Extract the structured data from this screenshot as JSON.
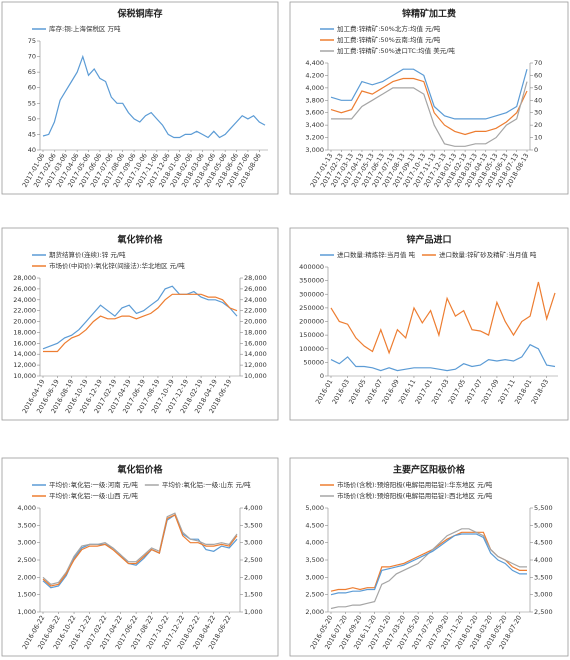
{
  "chart_data": [
    {
      "type": "line",
      "title": "保税铜库存",
      "categories": [
        "2017-01-06",
        null,
        "2017-02-06",
        null,
        "2017-03-06",
        null,
        "2017-04-06",
        null,
        "2017-05-06",
        null,
        "2017-06-06",
        null,
        "2017-07-06",
        null,
        "2017-08-06",
        null,
        "2017-09-06",
        null,
        "2017-10-06",
        null,
        "2017-11-06",
        null,
        "2017-12-06",
        null,
        "2018-01-06",
        null,
        "2018-02-06",
        null,
        "2018-03-06",
        null,
        "2018-04-06",
        null,
        "2018-05-06",
        null,
        "2018-06-06",
        null,
        "2018-07-06",
        null,
        "2018-08-06",
        null
      ],
      "series": [
        {
          "name": "库存:铜:上海保税区 万吨",
          "color": "#5b9bd5",
          "values": [
            44.5,
            45,
            49,
            56,
            59,
            62,
            65,
            70,
            64,
            66,
            63,
            62,
            57,
            55,
            55,
            52,
            50,
            49,
            51,
            52,
            50,
            48,
            45,
            44,
            44,
            45,
            45,
            46,
            45,
            44,
            46,
            44,
            45,
            47,
            49,
            51,
            50,
            51,
            49,
            48
          ]
        }
      ],
      "ylim": [
        40,
        75
      ],
      "yticks": [
        40,
        45,
        50,
        55,
        60,
        65,
        70,
        75
      ]
    },
    {
      "type": "line",
      "title": "锌精矿加工费",
      "categories": [
        "2017-01-13",
        "2017-02-13",
        "2017-03-13",
        "2017-04-13",
        "2017-05-13",
        "2017-06-13",
        "2017-07-13",
        "2017-08-13",
        "2017-09-13",
        "2017-10-13",
        "2017-11-13",
        "2017-12-13",
        "2018-01-13",
        "2018-02-13",
        "2018-03-13",
        "2018-04-13",
        "2018-05-13",
        "2018-06-13",
        "2018-07-13",
        "2018-08-13"
      ],
      "series": [
        {
          "name": "加工费:锌精矿:50%北方:均值 元/吨",
          "color": "#5b9bd5",
          "values": [
            3850,
            3800,
            3800,
            4100,
            4050,
            4100,
            4200,
            4300,
            4300,
            4200,
            3700,
            3550,
            3500,
            3500,
            3500,
            3500,
            3550,
            3600,
            3700,
            4300
          ]
        },
        {
          "name": "加工费:锌精矿:50%云南:均值 元/吨",
          "color": "#ed7d31",
          "values": [
            3650,
            3600,
            3650,
            3950,
            3900,
            4000,
            4100,
            4150,
            4150,
            4100,
            3600,
            3400,
            3300,
            3250,
            3300,
            3300,
            3350,
            3450,
            3600,
            3950
          ]
        },
        {
          "name": "加工费:锌精矿:50%进口TC:均值 美元/吨",
          "color": "#a5a5a5",
          "axis": "y2",
          "values": [
            25,
            25,
            25,
            35,
            40,
            45,
            50,
            50,
            50,
            45,
            20,
            5,
            3,
            3,
            5,
            5,
            10,
            20,
            25,
            55
          ]
        }
      ],
      "ylim": [
        3000,
        4400
      ],
      "yticks": [
        {
          "value": 3000,
          "label": "3,000"
        },
        {
          "value": 3200,
          "label": "3,200"
        },
        {
          "value": 3400,
          "label": "3,400"
        },
        {
          "value": 3600,
          "label": "3,600"
        },
        {
          "value": 3800,
          "label": "3,800"
        },
        {
          "value": 4000,
          "label": "4,000"
        },
        {
          "value": 4200,
          "label": "4,200"
        },
        {
          "value": 4400,
          "label": "4,400"
        }
      ],
      "y2lim": [
        0,
        70
      ],
      "y2ticks": [
        0,
        10,
        20,
        30,
        40,
        50,
        60,
        70
      ]
    },
    {
      "type": "line",
      "title": "氧化锌价格",
      "categories": [
        "2016-04-19",
        null,
        "2016-06-19",
        null,
        "2016-08-19",
        null,
        "2016-10-19",
        null,
        "2016-12-19",
        null,
        "2017-02-19",
        null,
        "2017-04-19",
        null,
        "2017-06-19",
        null,
        "2017-08-19",
        null,
        "2017-10-19",
        null,
        "2017-12-19",
        null,
        "2018-02-19",
        null,
        "2018-04-19",
        null,
        "2018-06-19",
        null
      ],
      "series": [
        {
          "name": "期货结算价(连续):锌 元/吨",
          "color": "#5b9bd5",
          "values": [
            15000,
            15500,
            16000,
            17000,
            17500,
            18500,
            20000,
            21500,
            23000,
            22000,
            21000,
            22500,
            23000,
            21500,
            22000,
            23000,
            24000,
            26000,
            26500,
            25000,
            25000,
            25500,
            24500,
            24000,
            24000,
            23500,
            22500,
            21000
          ]
        },
        {
          "name": "市场价(中间价):氧化锌(间接法):华北地区 元/吨",
          "color": "#ed7d31",
          "axis": "y2",
          "values": [
            14500,
            14500,
            14500,
            16000,
            17000,
            17500,
            18500,
            20000,
            21000,
            20500,
            20500,
            21000,
            21000,
            20500,
            21000,
            21500,
            22500,
            24000,
            25000,
            25000,
            25000,
            25000,
            25000,
            24500,
            24500,
            24000,
            22500,
            22000
          ]
        }
      ],
      "ylim": [
        10000,
        28000
      ],
      "yticks": [
        {
          "value": 10000,
          "label": "10,000"
        },
        {
          "value": 12000,
          "label": "12,000"
        },
        {
          "value": 14000,
          "label": "14,000"
        },
        {
          "value": 16000,
          "label": "16,000"
        },
        {
          "value": 18000,
          "label": "18,000"
        },
        {
          "value": 20000,
          "label": "20,000"
        },
        {
          "value": 22000,
          "label": "22,000"
        },
        {
          "value": 24000,
          "label": "24,000"
        },
        {
          "value": 26000,
          "label": "26,000"
        },
        {
          "value": 28000,
          "label": "28,000"
        }
      ],
      "y2lim": [
        10000,
        28000
      ],
      "y2ticks": [
        {
          "value": 10000,
          "label": "10,000"
        },
        {
          "value": 12000,
          "label": "12,000"
        },
        {
          "value": 14000,
          "label": "14,000"
        },
        {
          "value": 16000,
          "label": "16,000"
        },
        {
          "value": 18000,
          "label": "18,000"
        },
        {
          "value": 20000,
          "label": "20,000"
        },
        {
          "value": 22000,
          "label": "22,000"
        },
        {
          "value": 24000,
          "label": "24,000"
        },
        {
          "value": 26000,
          "label": "26,000"
        },
        {
          "value": 28000,
          "label": "28,000"
        }
      ]
    },
    {
      "type": "line",
      "title": "锌产品进口",
      "categories": [
        "2016-01",
        null,
        "2016-03",
        null,
        "2016-05",
        null,
        "2016-07",
        null,
        "2016-09",
        null,
        "2016-11",
        null,
        "2017-01",
        null,
        "2017-03",
        null,
        "2017-05",
        null,
        "2017-07",
        null,
        "2017-09",
        null,
        "2017-11",
        null,
        "2018-01",
        null,
        "2018-03",
        null
      ],
      "series": [
        {
          "name": "进口数量:精炼锌:当月值 吨",
          "color": "#5b9bd5",
          "values": [
            60000,
            45000,
            70000,
            35000,
            35000,
            30000,
            20000,
            30000,
            20000,
            25000,
            30000,
            30000,
            30000,
            25000,
            20000,
            25000,
            45000,
            35000,
            40000,
            60000,
            55000,
            60000,
            55000,
            70000,
            115000,
            100000,
            40000,
            35000
          ]
        },
        {
          "name": "进口数量:锌矿砂及精矿:当月值 吨",
          "color": "#ed7d31",
          "values": [
            250000,
            200000,
            190000,
            140000,
            110000,
            90000,
            170000,
            85000,
            170000,
            140000,
            250000,
            195000,
            240000,
            150000,
            285000,
            220000,
            240000,
            170000,
            165000,
            150000,
            270000,
            200000,
            150000,
            200000,
            220000,
            345000,
            210000,
            305000
          ]
        }
      ],
      "ylim": [
        0,
        400000
      ],
      "yticks": [
        0,
        50000,
        100000,
        150000,
        200000,
        250000,
        300000,
        350000,
        400000
      ]
    },
    {
      "type": "line",
      "title": "氧化铝价格",
      "categories": [
        "2016-06-22",
        null,
        "2016-08-22",
        null,
        "2016-10-22",
        null,
        "2016-12-22",
        null,
        "2017-02-22",
        null,
        "2017-04-22",
        null,
        "2017-06-22",
        null,
        "2017-08-22",
        null,
        "2017-10-22",
        null,
        "2017-12-22",
        null,
        "2018-02-22",
        null,
        "2018-04-22",
        null,
        "2018-06-22",
        null
      ],
      "series": [
        {
          "name": "平均价:氧化铝:一级:河南 元/吨",
          "color": "#5b9bd5",
          "values": [
            1900,
            1700,
            1750,
            2050,
            2550,
            2850,
            2950,
            2950,
            2950,
            2850,
            2650,
            2400,
            2350,
            2550,
            2800,
            2700,
            3650,
            3800,
            3250,
            3100,
            3100,
            2800,
            2750,
            2900,
            2850,
            3100
          ]
        },
        {
          "name": "平均价:氧化铝:一级:山东 元/吨",
          "color": "#a5a5a5",
          "values": [
            2000,
            1800,
            1850,
            2150,
            2600,
            2900,
            2950,
            2950,
            3000,
            2850,
            2650,
            2450,
            2450,
            2650,
            2850,
            2750,
            3750,
            3850,
            3300,
            3100,
            3050,
            2950,
            2950,
            3000,
            2950,
            3250
          ]
        },
        {
          "name": "平均价:氧化铝:一级:山西 元/吨",
          "color": "#ed7d31",
          "values": [
            1950,
            1750,
            1800,
            2100,
            2500,
            2800,
            2900,
            2900,
            2950,
            2800,
            2600,
            2400,
            2400,
            2600,
            2800,
            2700,
            3700,
            3800,
            3200,
            3000,
            3000,
            2900,
            2900,
            2950,
            2900,
            3200
          ]
        }
      ],
      "ylim": [
        1000,
        4000
      ],
      "yticks": [
        {
          "value": 1000,
          "label": "1,000"
        },
        {
          "value": 1500,
          "label": "1,500"
        },
        {
          "value": 2000,
          "label": "2,000"
        },
        {
          "value": 2500,
          "label": "2,500"
        },
        {
          "value": 3000,
          "label": "3,000"
        },
        {
          "value": 3500,
          "label": "3,500"
        },
        {
          "value": 4000,
          "label": "4,000"
        }
      ],
      "y2lim": [
        1000,
        4000
      ],
      "y2ticks": [
        {
          "value": 1000,
          "label": "1,000"
        },
        {
          "value": 1500,
          "label": "1,500"
        },
        {
          "value": 2000,
          "label": "2,000"
        },
        {
          "value": 2500,
          "label": "2,500"
        },
        {
          "value": 3000,
          "label": "3,000"
        },
        {
          "value": 3500,
          "label": "3,500"
        },
        {
          "value": 4000,
          "label": "4,000"
        }
      ]
    },
    {
      "type": "line",
      "title": "主要产区阳极价格",
      "categories": [
        "2016-05-20",
        null,
        "2016-07-20",
        null,
        "2016-09-20",
        null,
        "2016-11-20",
        null,
        "2017-01-20",
        null,
        "2017-03-20",
        null,
        "2017-05-20",
        null,
        "2017-07-20",
        null,
        "2017-09-20",
        null,
        "2017-11-20",
        null,
        "2018-01-20",
        null,
        "2018-03-20",
        null,
        "2018-05-20",
        null,
        "2018-07-20",
        null
      ],
      "series": [
        {
          "name": "市场价(含税):预焙阳极(电解铝用铝锭):华东地区 元/吨",
          "color": "#ed7d31",
          "values": [
            2600,
            2650,
            2650,
            2700,
            2650,
            2700,
            2700,
            3300,
            3300,
            3350,
            3400,
            3500,
            3600,
            3700,
            3800,
            3950,
            4100,
            4200,
            4300,
            4300,
            4300,
            4300,
            3800,
            3600,
            3500,
            3300,
            3200,
            3200
          ]
        },
        {
          "name": "市场价(含税):预焙阳极(电解铝用铝锭):西北地区 元/吨",
          "color": "#a5a5a5",
          "axis": "y2",
          "values": [
            2600,
            2650,
            2650,
            2700,
            2700,
            2750,
            2800,
            3300,
            3400,
            3600,
            3700,
            3800,
            3900,
            4100,
            4300,
            4500,
            4700,
            4800,
            4900,
            4900,
            4800,
            4700,
            4300,
            4100,
            4000,
            3900,
            3800,
            3800
          ]
        },
        {
          "color": "#5b9bd5",
          "values": [
            2500,
            2550,
            2550,
            2600,
            2600,
            2650,
            2650,
            3200,
            3250,
            3300,
            3350,
            3450,
            3550,
            3650,
            3750,
            3900,
            4050,
            4200,
            4250,
            4250,
            4250,
            4150,
            3700,
            3500,
            3400,
            3200,
            3100,
            3100
          ]
        }
      ],
      "ylim": [
        2000,
        5000
      ],
      "yticks": [
        {
          "value": 2000,
          "label": "2,000"
        },
        {
          "value": 2500,
          "label": "2,500"
        },
        {
          "value": 3000,
          "label": "3,000"
        },
        {
          "value": 3500,
          "label": "3,500"
        },
        {
          "value": 4000,
          "label": "4,000"
        },
        {
          "value": 4500,
          "label": "4,500"
        },
        {
          "value": 5000,
          "label": "5,000"
        }
      ],
      "y2lim": [
        2500,
        5500
      ],
      "y2ticks": [
        {
          "value": 2500,
          "label": "2,500"
        },
        {
          "value": 3000,
          "label": "3,000"
        },
        {
          "value": 3500,
          "label": "3,500"
        },
        {
          "value": 4000,
          "label": "4,000"
        },
        {
          "value": 4500,
          "label": "4,500"
        },
        {
          "value": 5000,
          "label": "5,000"
        },
        {
          "value": 5500,
          "label": "5,500"
        }
      ]
    }
  ]
}
